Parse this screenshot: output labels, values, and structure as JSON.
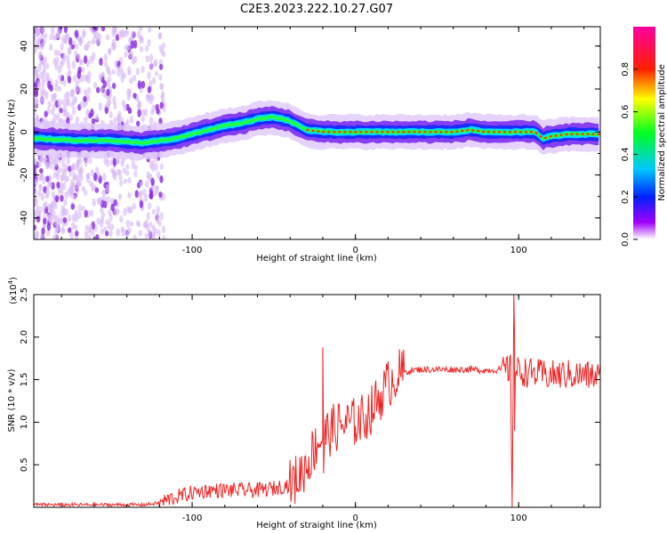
{
  "title": "C2E3.2023.222.10.27.G07",
  "chart_data": [
    {
      "type": "heatmap",
      "xlabel": "Height of straight line (km)",
      "ylabel": "Frequency (Hz)",
      "xlim": [
        -197,
        150
      ],
      "ylim": [
        -50,
        49
      ],
      "xticks": [
        -100,
        0,
        100
      ],
      "xtick_labels": [
        "-100",
        "0",
        "100"
      ],
      "yticks": [
        -40,
        -20,
        0,
        20,
        40
      ],
      "ytick_labels": [
        "-40",
        "-20",
        "0",
        "20",
        "40"
      ],
      "colorbar": {
        "label": "Normalized spectral amplitude",
        "range": [
          0,
          1
        ],
        "ticks": [
          0,
          0.2,
          0.4,
          0.6,
          0.8
        ],
        "tick_labels": [
          "0.0",
          "0.2",
          "0.4",
          "0.6",
          "0.8"
        ]
      },
      "ridge": {
        "height_km": [
          -197,
          -170,
          -150,
          -130,
          -120,
          -110,
          -100,
          -90,
          -80,
          -70,
          -60,
          -50,
          -45,
          -40,
          -35,
          -30,
          -20,
          -10,
          0,
          10,
          20,
          30,
          40,
          50,
          60,
          70,
          80,
          90,
          100,
          110,
          115,
          120,
          130,
          140,
          150
        ],
        "frequency_hz": [
          -3,
          -4,
          -4,
          -5,
          -4,
          -3,
          -1,
          1,
          3,
          4,
          6,
          7,
          6,
          5,
          3,
          1,
          0,
          0,
          0,
          0,
          0,
          0,
          0,
          0,
          0,
          1,
          0,
          0,
          0,
          0,
          -3,
          -2,
          -1,
          -1,
          -1
        ]
      }
    },
    {
      "type": "line",
      "xlabel": "Height of straight line (km)",
      "ylabel": "SNR (10 * v/v)",
      "yscale_label": "(x10",
      "yscale_exponent": "4",
      "yscale_suffix": ")",
      "xlim": [
        -197,
        150
      ],
      "ylim": [
        0,
        25000
      ],
      "xticks": [
        -100,
        0,
        100
      ],
      "xtick_labels": [
        "-100",
        "0",
        "100"
      ],
      "yticks": [
        5000,
        10000,
        15000,
        20000,
        25000
      ],
      "ytick_labels": [
        "0.5",
        "1.0",
        "1.5",
        "2.0",
        "2.5"
      ],
      "series": [
        {
          "color": "#ee2222",
          "x": [
            -197,
            -180,
            -160,
            -140,
            -130,
            -120,
            -115,
            -110,
            -100,
            -90,
            -80,
            -70,
            -60,
            -50,
            -40,
            -35,
            -30,
            -25,
            -22,
            -20,
            -15,
            -10,
            -5,
            0,
            5,
            10,
            15,
            20,
            25,
            30,
            35,
            40,
            50,
            60,
            70,
            80,
            90,
            95,
            96,
            97,
            98,
            100,
            110,
            120,
            130,
            140,
            150
          ],
          "y": [
            300,
            300,
            300,
            300,
            300,
            500,
            900,
            1200,
            1700,
            2000,
            2000,
            2000,
            2000,
            2200,
            2700,
            3500,
            5000,
            7000,
            8000,
            8200,
            9000,
            9600,
            9800,
            10000,
            10500,
            11500,
            13000,
            14500,
            15500,
            15900,
            16100,
            16200,
            16200,
            16200,
            16200,
            16100,
            16200,
            16200,
            500,
            24000,
            16000,
            16000,
            15700,
            15500,
            15600,
            15500,
            15400
          ]
        }
      ]
    }
  ]
}
